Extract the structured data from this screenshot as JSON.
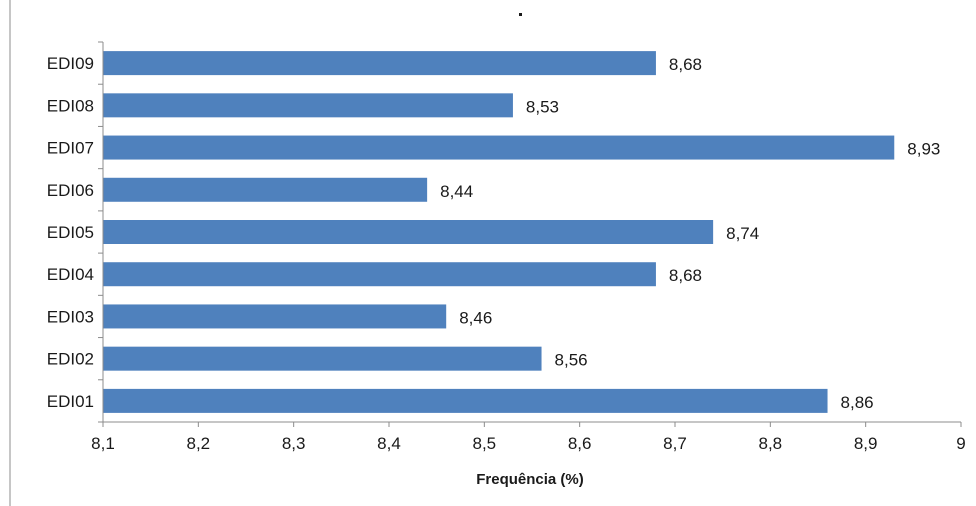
{
  "chart_data": {
    "type": "bar",
    "orientation": "horizontal",
    "title": "",
    "xlabel": "Frequência (%)",
    "ylabel": "",
    "categories": [
      "EDI09",
      "EDI08",
      "EDI07",
      "EDI06",
      "EDI05",
      "EDI04",
      "EDI03",
      "EDI02",
      "EDI01"
    ],
    "values": [
      8.68,
      8.53,
      8.93,
      8.44,
      8.74,
      8.68,
      8.46,
      8.56,
      8.86
    ],
    "value_labels": [
      "8,68",
      "8,53",
      "8,93",
      "8,44",
      "8,74",
      "8,68",
      "8,46",
      "8,56",
      "8,86"
    ],
    "xlim": [
      8.1,
      9.0
    ],
    "x_ticks": [
      8.1,
      8.2,
      8.3,
      8.4,
      8.5,
      8.6,
      8.7,
      8.8,
      8.9,
      9.0
    ],
    "x_tick_labels": [
      "8,1",
      "8,2",
      "8,3",
      "8,4",
      "8,5",
      "8,6",
      "8,7",
      "8,8",
      "8,9",
      "9"
    ],
    "grid": false,
    "legend": "none",
    "bar_color": "#4f81bd",
    "axis_color": "#8c8c8c"
  }
}
